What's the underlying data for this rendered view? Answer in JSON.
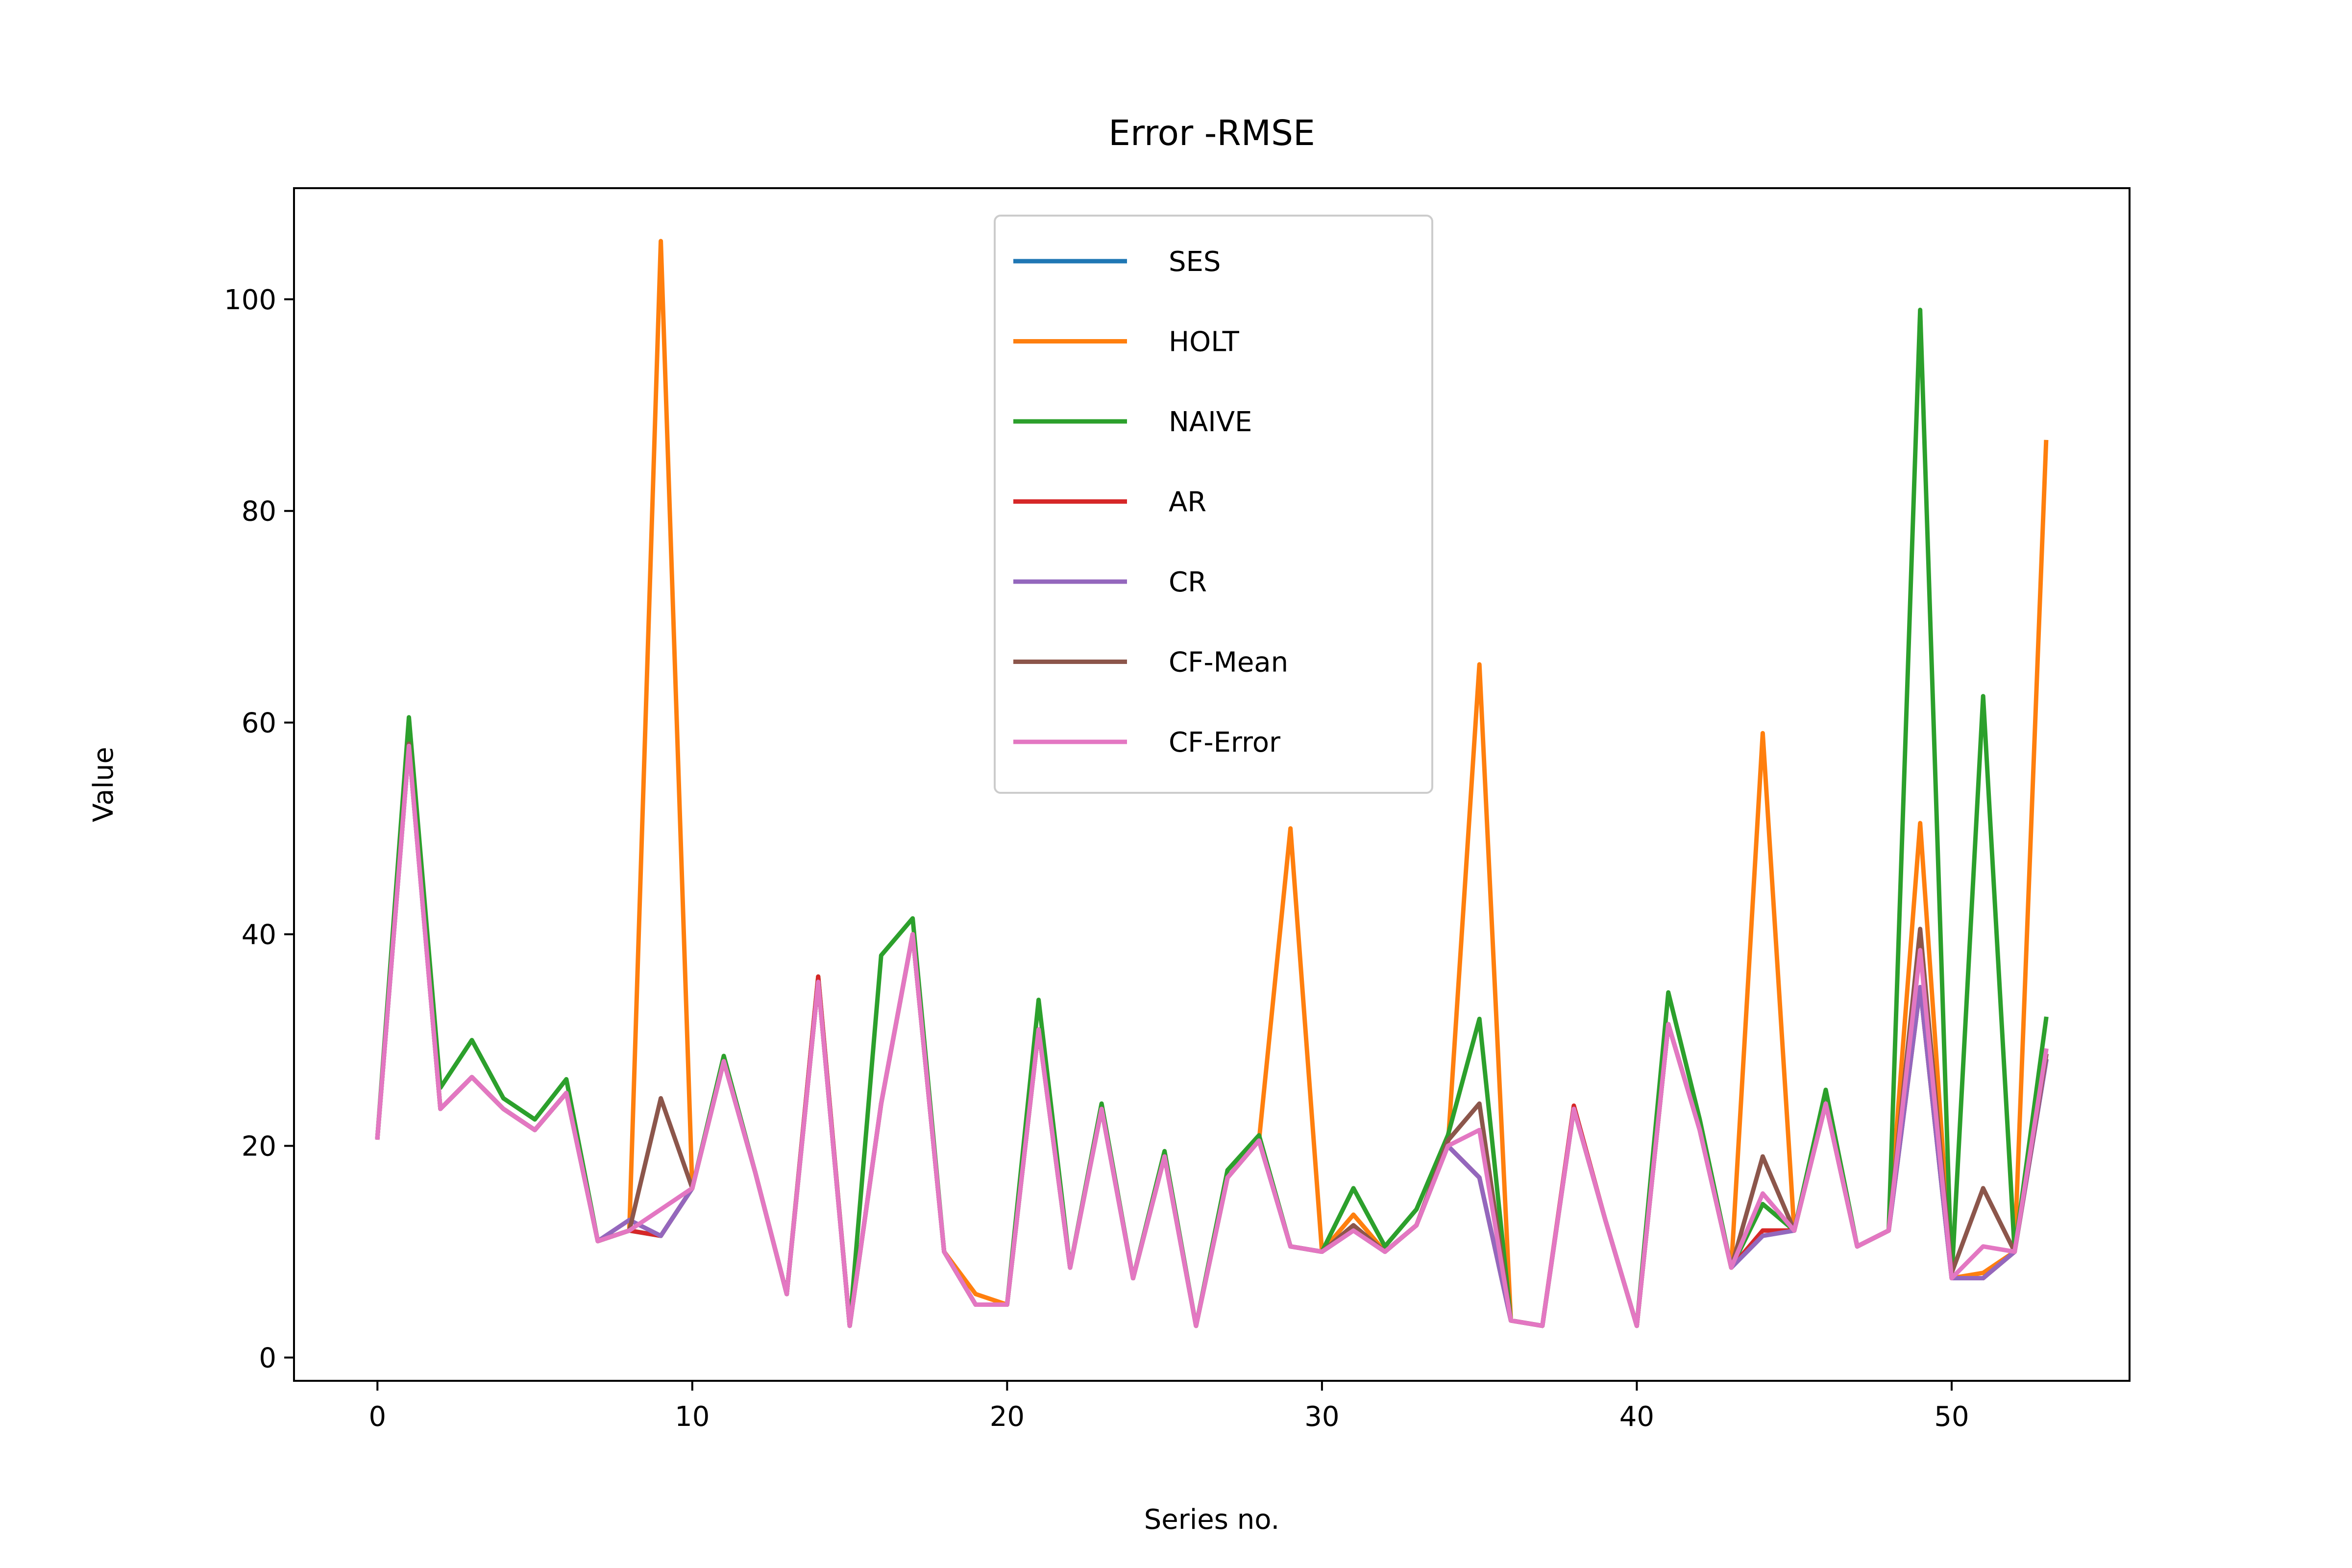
{
  "chart_data": {
    "type": "line",
    "title": "Error -RMSE",
    "xlabel": "Series no.",
    "ylabel": "Value",
    "xlim": [
      -2.65,
      55.65
    ],
    "ylim": [
      -2.2,
      110.5
    ],
    "xticks": [
      0,
      10,
      20,
      30,
      40,
      50
    ],
    "yticks": [
      0,
      20,
      40,
      60,
      80,
      100
    ],
    "grid": false,
    "legend_position": "top-center",
    "x": [
      0,
      1,
      2,
      3,
      4,
      5,
      6,
      7,
      8,
      9,
      10,
      11,
      12,
      13,
      14,
      15,
      16,
      17,
      18,
      19,
      20,
      21,
      22,
      23,
      24,
      25,
      26,
      27,
      28,
      29,
      30,
      31,
      32,
      33,
      34,
      35,
      36,
      37,
      38,
      39,
      40,
      41,
      42,
      43,
      44,
      45,
      46,
      47,
      48,
      49,
      50,
      51,
      52,
      53
    ],
    "series": [
      {
        "name": "SES",
        "color": "#1f77b4",
        "values": [
          20.8,
          57.8,
          23.5,
          26.5,
          23.5,
          21.5,
          25,
          11,
          12,
          11.5,
          16,
          28,
          17.5,
          6,
          35.5,
          3,
          24,
          40,
          10,
          5,
          5,
          31,
          8.5,
          23.5,
          7.5,
          19,
          3,
          17,
          20.5,
          10.5,
          10,
          12,
          10,
          12.5,
          20,
          17,
          3.5,
          3,
          23.5,
          13,
          3,
          31.5,
          21.5,
          8.5,
          11.5,
          12,
          24,
          10.5,
          12,
          35,
          7.5,
          7.5,
          10,
          28
        ]
      },
      {
        "name": "HOLT",
        "color": "#ff7f0e",
        "values": [
          20.8,
          58,
          23.5,
          26.5,
          23.5,
          21.5,
          25,
          11,
          12,
          105.5,
          16,
          28,
          17.5,
          6,
          35.5,
          3,
          24,
          40,
          10,
          6,
          5,
          31,
          8.5,
          23.5,
          7.5,
          19,
          3,
          17,
          20.5,
          50,
          10,
          13.5,
          10,
          12.5,
          20,
          65.5,
          3.5,
          3,
          23.5,
          13,
          3,
          31.5,
          21.5,
          8.5,
          59,
          12,
          24,
          10.5,
          12,
          50.5,
          7.5,
          8,
          10,
          86.5
        ]
      },
      {
        "name": "NAIVE",
        "color": "#2ca02c",
        "values": [
          20.8,
          60.5,
          25.5,
          30,
          24.5,
          22.5,
          26.3,
          11,
          12,
          11.5,
          16,
          28.5,
          17.5,
          6,
          36,
          3,
          38,
          41.5,
          10,
          5,
          5,
          33.8,
          8.5,
          24,
          7.5,
          19.5,
          3,
          17.7,
          21,
          10.5,
          10,
          16,
          10.5,
          14,
          21,
          32,
          3.5,
          3,
          23.5,
          13,
          3,
          34.5,
          22.5,
          8.5,
          14.5,
          12,
          25.3,
          10.5,
          12,
          99,
          7.5,
          62.5,
          10,
          32
        ]
      },
      {
        "name": "AR",
        "color": "#d62728",
        "values": [
          20.8,
          57.8,
          23.5,
          26.5,
          23.5,
          21.5,
          25,
          11,
          12,
          11.5,
          16,
          28,
          17.5,
          6,
          36,
          3,
          24,
          40,
          10,
          5,
          5,
          31,
          8.5,
          23.5,
          7.5,
          19,
          3,
          17,
          20.5,
          10.5,
          10,
          12,
          10,
          12.5,
          20,
          17,
          3.5,
          3,
          23.8,
          13,
          3,
          31.5,
          21.5,
          8.5,
          12,
          12,
          24,
          10.5,
          12,
          35,
          7.5,
          7.5,
          10,
          28
        ]
      },
      {
        "name": "CR",
        "color": "#9467bd",
        "values": [
          20.8,
          57.8,
          23.5,
          26.5,
          23.5,
          21.5,
          25,
          11,
          13,
          11.5,
          16,
          28,
          17.5,
          6,
          35.5,
          3,
          24,
          40,
          10,
          5,
          5,
          31,
          8.5,
          23.5,
          7.5,
          19,
          3,
          17,
          20.5,
          10.5,
          10,
          12,
          10,
          12.5,
          20,
          17,
          3.5,
          3,
          23.5,
          13,
          3,
          31.5,
          21.5,
          8.5,
          11.5,
          12,
          24,
          10.5,
          12,
          35,
          7.5,
          7.5,
          10,
          28
        ]
      },
      {
        "name": "CF-Mean",
        "color": "#8c564b",
        "values": [
          20.8,
          58,
          23.5,
          26.5,
          23.5,
          21.5,
          25,
          11,
          12,
          24.5,
          16,
          28,
          17.5,
          6,
          35.5,
          3,
          24,
          40,
          10,
          5,
          5,
          31,
          8.5,
          23.5,
          7.5,
          19,
          3,
          17,
          20.5,
          10.5,
          10,
          12.5,
          10,
          12.5,
          20.5,
          24,
          3.5,
          3,
          23.5,
          13,
          3,
          31.5,
          21.5,
          8.5,
          19,
          12,
          24,
          10.5,
          12,
          40.5,
          8,
          16,
          10,
          28.5
        ]
      },
      {
        "name": "CF-Error",
        "color": "#e377c2",
        "values": [
          20.8,
          57.8,
          23.5,
          26.5,
          23.5,
          21.5,
          25,
          11,
          12,
          14,
          16,
          28,
          17.5,
          6,
          35.5,
          3,
          24,
          40,
          10,
          5,
          5,
          31,
          8.5,
          23.5,
          7.5,
          19,
          3,
          17,
          20.5,
          10.5,
          10,
          12,
          10,
          12.5,
          20,
          21.5,
          3.5,
          3,
          23.5,
          13,
          3,
          31.5,
          21.5,
          8.5,
          15.5,
          12,
          24,
          10.5,
          12,
          38.5,
          7.5,
          10.5,
          10,
          29
        ]
      }
    ]
  }
}
